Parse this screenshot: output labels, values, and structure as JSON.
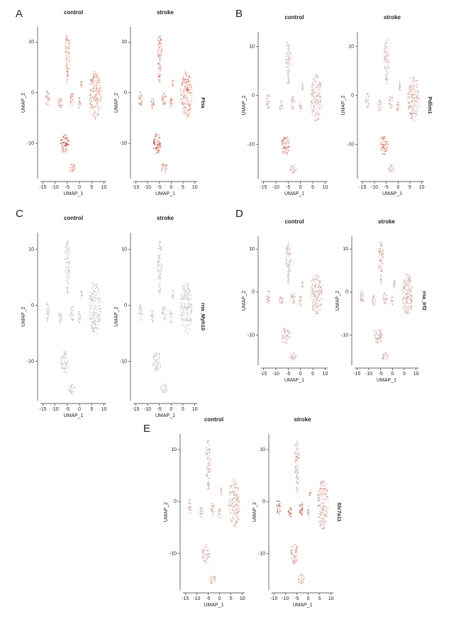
{
  "chart_data": [
    {
      "type": "scatter",
      "panel": "A",
      "title": "control",
      "xlabel": "UMAP_1",
      "ylabel": "UMAP_2",
      "xlim": [
        -16,
        11
      ],
      "ylim": [
        -17,
        13
      ],
      "xticks": [
        -15,
        -10,
        -5,
        0,
        5,
        10
      ],
      "yticks": [
        -10,
        0,
        10
      ],
      "color": "#e8937c",
      "highlight_color": "#d7301f"
    },
    {
      "type": "scatter",
      "gene": "Flna",
      "title": "stroke",
      "xlabel": "UMAP_1",
      "ylabel": "UMAP_2",
      "xlim": [
        -16,
        11
      ],
      "ylim": [
        -17,
        13
      ],
      "xticks": [
        -15,
        -10,
        -5,
        0,
        5,
        10
      ],
      "yticks": [
        -10,
        0,
        10
      ],
      "color": "#e8937c",
      "highlight_color": "#d7301f"
    },
    {
      "type": "scatter",
      "panel": "B",
      "title": "control",
      "xlabel": "UMAP_1",
      "ylabel": "UMAP_2",
      "xlim": [
        -16,
        11
      ],
      "ylim": [
        -17,
        13
      ],
      "xticks": [
        -15,
        -10,
        -5,
        0,
        5,
        10
      ],
      "yticks": [
        -10,
        0,
        10
      ],
      "color": "#d6b2aa",
      "highlight_color": "#e0583a"
    },
    {
      "type": "scatter",
      "gene": "Pdlim1",
      "title": "stroke",
      "xlabel": "UMAP_1",
      "ylabel": "UMAP_2",
      "xlim": [
        -16,
        11
      ],
      "ylim": [
        -17,
        13
      ],
      "xticks": [
        -15,
        -10,
        -5,
        0,
        5,
        10
      ],
      "yticks": [
        -10,
        0,
        10
      ],
      "color": "#d6b2aa",
      "highlight_color": "#e0583a"
    },
    {
      "type": "scatter",
      "panel": "C",
      "title": "control",
      "xlabel": "UMAP_1",
      "ylabel": "UMAP_2",
      "xlim": [
        -16,
        11
      ],
      "ylim": [
        -17,
        13
      ],
      "xticks": [
        -15,
        -10,
        -5,
        0,
        5,
        10
      ],
      "yticks": [
        -10,
        0,
        10
      ],
      "color": "#bdbdbd",
      "highlight_color": "#bdbdbd"
    },
    {
      "type": "scatter",
      "gene": "rna_Myh10",
      "title": "stroke",
      "xlabel": "UMAP_1",
      "ylabel": "UMAP_2",
      "xlim": [
        -16,
        11
      ],
      "ylim": [
        -17,
        13
      ],
      "xticks": [
        -15,
        -10,
        -5,
        0,
        5,
        10
      ],
      "yticks": [
        -10,
        0,
        10
      ],
      "color": "#bdbdbd",
      "highlight_color": "#bdbdbd"
    },
    {
      "type": "scatter",
      "panel": "D",
      "title": "control",
      "xlabel": "UMAP_1",
      "ylabel": "UMAP_2",
      "xlim": [
        -16,
        11
      ],
      "ylim": [
        -17,
        13
      ],
      "xticks": [
        -15,
        -10,
        -5,
        0,
        5,
        10
      ],
      "yticks": [
        -10,
        0,
        10
      ],
      "color": "#d4aea6",
      "highlight_color": "#e0603f"
    },
    {
      "type": "scatter",
      "gene": "rna_Irf2",
      "title": "stroke",
      "xlabel": "UMAP_1",
      "ylabel": "UMAP_2",
      "xlim": [
        -16,
        11
      ],
      "ylim": [
        -17,
        13
      ],
      "xticks": [
        -15,
        -10,
        -5,
        0,
        5,
        10
      ],
      "yticks": [
        -10,
        0,
        10
      ],
      "color": "#d4aea6",
      "highlight_color": "#e0603f"
    },
    {
      "type": "scatter",
      "panel": "E",
      "title": "control",
      "xlabel": "UMAP_1",
      "ylabel": "UMAP_2",
      "xlim": [
        -16,
        11
      ],
      "ylim": [
        -17,
        13
      ],
      "xticks": [
        -15,
        -10,
        -5,
        0,
        5,
        10
      ],
      "yticks": [
        -10,
        0,
        10
      ],
      "color": "#d6aea4",
      "highlight_color": "#d9402a"
    },
    {
      "type": "scatter",
      "gene": "Slc7a11",
      "title": "stroke",
      "xlabel": "UMAP_1",
      "ylabel": "UMAP_2",
      "xlim": [
        -16,
        11
      ],
      "ylim": [
        -17,
        13
      ],
      "xticks": [
        -15,
        -10,
        -5,
        0,
        5,
        10
      ],
      "yticks": [
        -10,
        0,
        10
      ],
      "color": "#d6aea4",
      "highlight_color": "#d9402a"
    }
  ]
}
